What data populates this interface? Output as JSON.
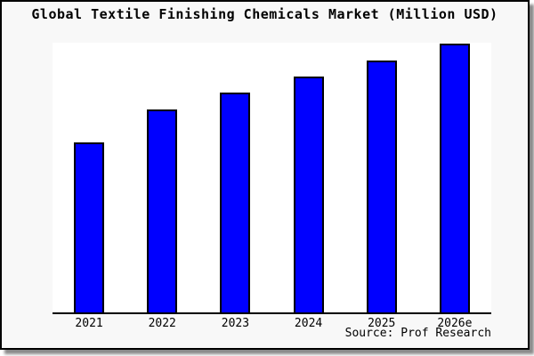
{
  "title": "Global Textile Finishing Chemicals Market (Million USD)",
  "source": "Source: Prof Research",
  "colors": {
    "bar_fill": "#0000ff",
    "bar_border": "#000000",
    "page_bg": "#f8f8f8",
    "plot_bg": "#ffffff",
    "frame_border": "#000000",
    "text": "#000000",
    "shadow": "#8a8a8a"
  },
  "chart_data": {
    "type": "bar",
    "title": "Global Textile Finishing Chemicals Market (Million USD)",
    "categories": [
      "2021",
      "2022",
      "2023",
      "2024",
      "2025",
      "2026e"
    ],
    "values": [
      189,
      226,
      245,
      263,
      281,
      300
    ],
    "values_note": "relative bar heights in px; no y-axis scale or value labels are shown in the chart",
    "xlabel": "",
    "ylabel": "",
    "ylim": [
      0,
      303
    ],
    "grid": false,
    "legend": false,
    "y_axis_visible": false,
    "x_axis_visible": true,
    "source_annotation": "Source: Prof Research"
  }
}
